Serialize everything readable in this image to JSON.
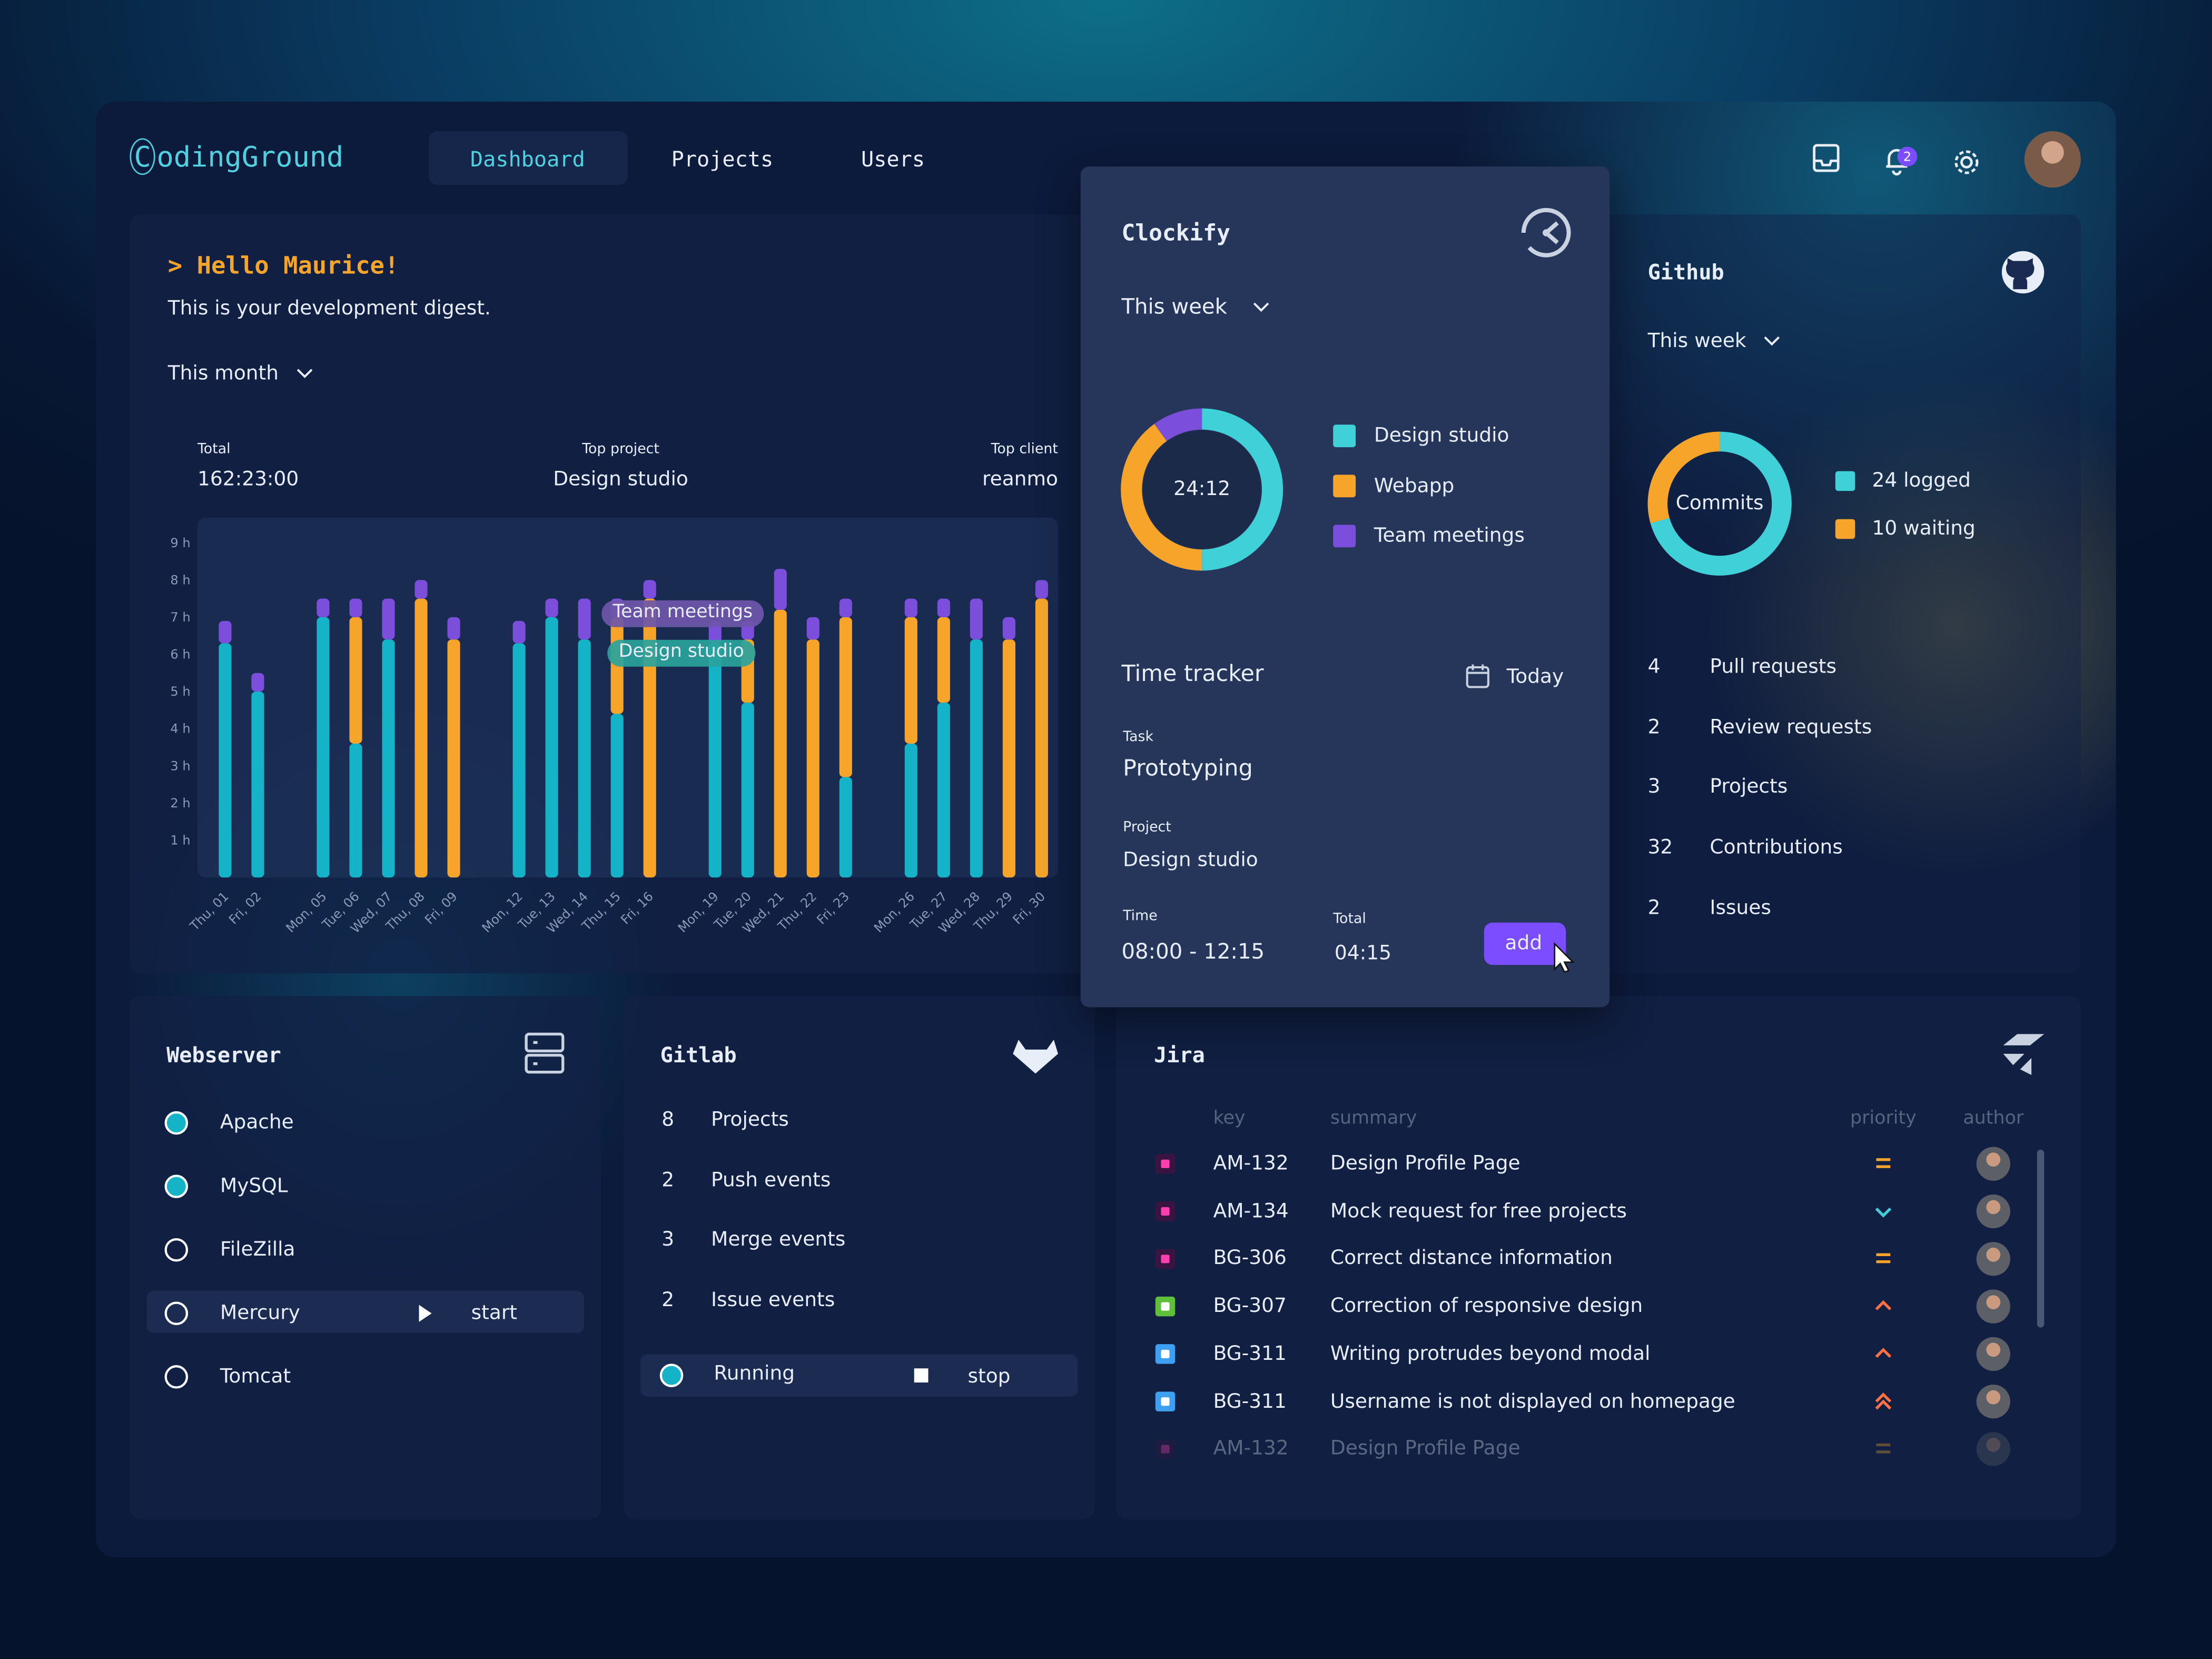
{
  "header": {
    "logo": "CodingGround",
    "nav": [
      "Dashboard",
      "Projects",
      "Users"
    ],
    "notifications": 2
  },
  "digest": {
    "greeting": "> Hello Maurice!",
    "subtitle": "This is your development digest.",
    "period": "This month",
    "stats": [
      {
        "label": "Total",
        "value": "162:23:00"
      },
      {
        "label": "Top project",
        "value": "Design studio"
      },
      {
        "label": "Top client",
        "value": "reanmo"
      }
    ],
    "chart": {
      "type": "bar",
      "stacked": true,
      "categories": [
        "Thu, 01",
        "Fri, 02",
        null,
        "Mon, 05",
        "Tue, 06",
        "Wed, 07",
        "Thu, 08",
        "Fri, 09",
        null,
        "Mon, 12",
        "Tue, 13",
        "Wed, 14",
        "Thu, 15",
        "Fri, 16",
        null,
        "Mon, 19",
        "Tue, 20",
        "Wed, 21",
        "Thu, 22",
        "Fri, 23",
        null,
        "Mon, 26",
        "Tue, 27",
        "Wed, 28",
        "Thu, 29",
        "Fri, 30"
      ],
      "series": [
        {
          "name": "Design studio",
          "color": "#14b3c7",
          "values": [
            6.3,
            5.0,
            null,
            7.0,
            3.6,
            6.4,
            0,
            0,
            null,
            6.3,
            7.0,
            6.4,
            4.4,
            0,
            null,
            6.3,
            4.7,
            0,
            0,
            2.7,
            null,
            3.6,
            4.7,
            6.4,
            0,
            0
          ]
        },
        {
          "name": "Webapp",
          "color": "#f6a52a",
          "values": [
            0,
            0,
            null,
            0,
            3.4,
            0,
            7.5,
            6.4,
            null,
            0,
            0,
            0,
            2.6,
            7.5,
            null,
            0,
            1.7,
            7.2,
            6.4,
            4.3,
            null,
            3.4,
            2.3,
            0,
            6.4,
            7.5
          ]
        },
        {
          "name": "Team meetings",
          "color": "#7b4fdc",
          "values": [
            0.6,
            0.5,
            null,
            0.5,
            0.5,
            1.1,
            0.5,
            0.6,
            null,
            0.6,
            0.5,
            1.1,
            0.5,
            0.5,
            null,
            0.6,
            0.5,
            1.1,
            0.6,
            0.5,
            null,
            0.5,
            0.5,
            1.1,
            0.6,
            0.5
          ]
        }
      ],
      "ylim": [
        0,
        9.6
      ],
      "yticks": [
        {
          "value": 1,
          "label": "1 h"
        },
        {
          "value": 2,
          "label": "2 h"
        },
        {
          "value": 3,
          "label": "3 h"
        },
        {
          "value": 4,
          "label": "4 h"
        },
        {
          "value": 5,
          "label": "5 h"
        },
        {
          "value": 6,
          "label": "6 h"
        },
        {
          "value": 7,
          "label": "7 h"
        },
        {
          "value": 8,
          "label": "8 h"
        },
        {
          "value": 9,
          "label": "9 h"
        }
      ]
    }
  },
  "clockify": {
    "title": "Clockify",
    "period": "This week",
    "donut": {
      "center": "24:12",
      "series": [
        {
          "name": "Design studio",
          "color": "#3fd0d8",
          "value": 50
        },
        {
          "name": "Webapp",
          "color": "#f6a52a",
          "value": 40
        },
        {
          "name": "Team meetings",
          "color": "#7b4fdc",
          "value": 10
        }
      ]
    },
    "tracker": {
      "title": "Time tracker",
      "date": "Today",
      "task_label": "Task",
      "task": "Prototyping",
      "project_label": "Project",
      "project": "Design studio",
      "time_label": "Time",
      "time": "08:00 - 12:15",
      "total_label": "Total",
      "total": "04:15",
      "button": "add"
    }
  },
  "github": {
    "title": "Github",
    "period": "This week",
    "donut": {
      "center": "Commits",
      "series": [
        {
          "label": "24 logged",
          "value": 24,
          "color": "#3fd0d8"
        },
        {
          "label": "10 waiting",
          "value": 10,
          "color": "#f6a52a"
        }
      ]
    },
    "stats": [
      {
        "count": "4",
        "label": "Pull requests"
      },
      {
        "count": "2",
        "label": "Review requests"
      },
      {
        "count": "3",
        "label": "Projects"
      },
      {
        "count": "32",
        "label": "Contributions"
      },
      {
        "count": "2",
        "label": "Issues"
      }
    ]
  },
  "webserver": {
    "title": "Webserver",
    "servers": [
      {
        "name": "Apache",
        "status": "running"
      },
      {
        "name": "MySQL",
        "status": "running"
      },
      {
        "name": "FileZilla",
        "status": "stopped"
      },
      {
        "name": "Mercury",
        "status": "stopped",
        "action": "start"
      },
      {
        "name": "Tomcat",
        "status": "stopped"
      }
    ]
  },
  "gitlab": {
    "title": "Gitlab",
    "stats": [
      {
        "count": "8",
        "label": "Projects"
      },
      {
        "count": "2",
        "label": "Push events"
      },
      {
        "count": "3",
        "label": "Merge events"
      },
      {
        "count": "2",
        "label": "Issue events"
      }
    ],
    "status": "Running",
    "action": "stop"
  },
  "jira": {
    "title": "Jira",
    "columns": [
      "key",
      "summary",
      "priority",
      "author"
    ],
    "rows": [
      {
        "type": "xd",
        "key": "AM-132",
        "summary": "Design Profile Page",
        "priority": "medium"
      },
      {
        "type": "xd",
        "key": "AM-134",
        "summary": "Mock request for free projects",
        "priority": "low"
      },
      {
        "type": "xd",
        "key": "BG-306",
        "summary": "Correct distance information",
        "priority": "medium"
      },
      {
        "type": "story",
        "key": "BG-307",
        "summary": "Correction of responsive design",
        "priority": "high"
      },
      {
        "type": "task",
        "key": "BG-311",
        "summary": "Writing protrudes beyond modal",
        "priority": "high"
      },
      {
        "type": "task",
        "key": "BG-311",
        "summary": "Username is not displayed on homepage",
        "priority": "highest"
      },
      {
        "type": "xd",
        "key": "AM-132",
        "summary": "Design Profile Page",
        "priority": "medium"
      }
    ]
  }
}
